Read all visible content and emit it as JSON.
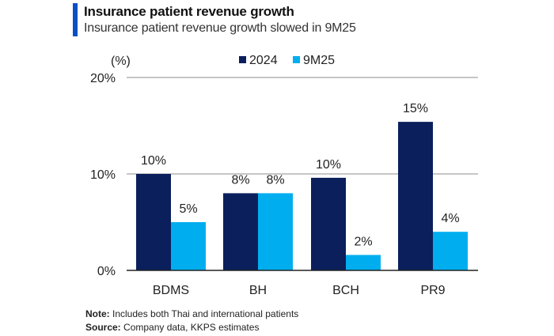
{
  "header": {
    "title": "Insurance patient revenue growth",
    "subtitle": "Insurance patient revenue growth slowed in 9M25"
  },
  "footer": {
    "note_label": "Note:",
    "note_text": " Includes both Thai and international patients",
    "source_label": "Source:",
    "source_text": " Company data, KKPS estimates"
  },
  "colors": {
    "accent": "#0a4fc4",
    "series_2024": "#0b1f5c",
    "series_9M25": "#00aeef",
    "gridline": "#b3b3b3",
    "baseline": "#222222"
  },
  "chart_data": {
    "type": "bar",
    "title": "Insurance patient revenue growth",
    "subtitle": "Insurance patient revenue growth slowed in 9M25",
    "ylabel": "(%)",
    "xlabel": "",
    "categories": [
      "BDMS",
      "BH",
      "BCH",
      "PR9"
    ],
    "series": [
      {
        "name": "2024",
        "values": [
          10.0,
          8.0,
          9.6,
          15.4
        ],
        "labels": [
          "10%",
          "8%",
          "10%",
          "15%"
        ]
      },
      {
        "name": "9M25",
        "values": [
          5.0,
          8.0,
          1.6,
          4.0
        ],
        "labels": [
          "5%",
          "8%",
          "2%",
          "4%"
        ]
      }
    ],
    "ylim": [
      0,
      20
    ],
    "yticks": [
      0,
      10,
      20
    ],
    "ytick_labels": [
      "0%",
      "10%",
      "20%"
    ],
    "grid": true,
    "legend": "top-center"
  }
}
